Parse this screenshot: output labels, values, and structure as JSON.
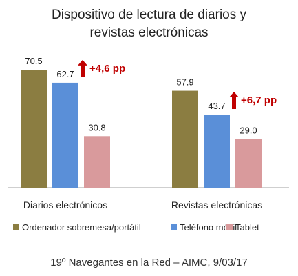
{
  "chart_data": {
    "type": "bar",
    "title_lines": [
      "Dispositivo de lectura de diarios y",
      "revistas electrónicas"
    ],
    "categories": [
      "Diarios electrónicos",
      "Revistas electrónicas"
    ],
    "series": [
      {
        "name": "Ordenador sobremesa/portátil",
        "color": "#8b7d41",
        "values": [
          70.5,
          57.9
        ],
        "labels": [
          "70.5",
          "57.9"
        ]
      },
      {
        "name": "Teléfono móvil",
        "color": "#5a8fd8",
        "values": [
          62.7,
          43.7
        ],
        "labels": [
          "62.7",
          "43.7"
        ]
      },
      {
        "name": "Tablet",
        "color": "#d99a9c",
        "values": [
          30.8,
          29.0
        ],
        "labels": [
          "30.8",
          "29.0"
        ]
      }
    ],
    "annotations": [
      {
        "category": "Diarios electrónicos",
        "series": "Teléfono móvil",
        "text": "+4,6 pp",
        "color": "#c00000"
      },
      {
        "category": "Revistas electrónicas",
        "series": "Teléfono móvil",
        "text": "+6,7 pp",
        "color": "#c00000"
      }
    ],
    "ylim": [
      0,
      80
    ],
    "axis_color": "#bfbfbf",
    "legend_position": "bottom"
  },
  "source": "19º Navegantes en la Red – AIMC, 9/03/17"
}
